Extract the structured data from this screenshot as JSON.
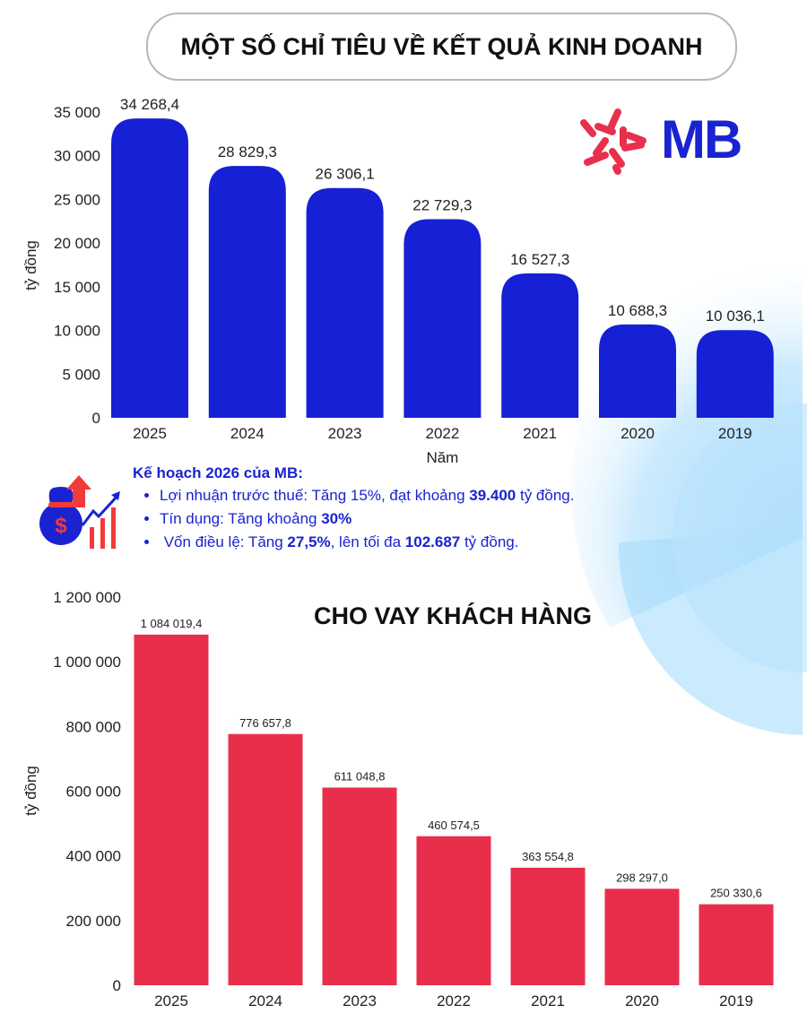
{
  "header": {
    "title": "MỘT SỐ CHỈ TIÊU VỀ KẾT QUẢ KINH DOANH"
  },
  "logo": {
    "text": "MB",
    "star_color": "#e8304c",
    "text_color": "#1a23d0"
  },
  "plan": {
    "title": "Kế hoạch 2026 của MB:",
    "items": [
      {
        "pre": "Lợi nhuận trước thuế: Tăng 15%, đạt khoảng ",
        "b1": "39.400",
        "mid": " tỷ đồng.",
        "b2": "",
        "post": ""
      },
      {
        "pre": "Tín dụng: Tăng khoảng ",
        "b1": "30%",
        "mid": "",
        "b2": "",
        "post": ""
      },
      {
        "pre": " Vốn điều lệ: Tăng ",
        "b1": "27,5%",
        "mid": ", lên tối đa ",
        "b2": "102.687",
        "post": " tỷ đồng."
      }
    ],
    "icon": "money-bag-growth-icon"
  },
  "chart_data": [
    {
      "type": "bar",
      "title": "",
      "xlabel": "Năm",
      "ylabel": "tỷ đồng",
      "categories": [
        "2025",
        "2024",
        "2023",
        "2022",
        "2021",
        "2020",
        "2019"
      ],
      "values": [
        34268.4,
        28829.3,
        26306.1,
        22729.3,
        16527.3,
        10688.3,
        10036.1
      ],
      "data_labels": [
        "34 268,4",
        "28 829,3",
        "26 306,1",
        "22 729,3",
        "16 527,3",
        "10 688,3",
        "10 036,1"
      ],
      "ylim": [
        0,
        35000
      ],
      "yticks": [
        0,
        5000,
        10000,
        15000,
        20000,
        25000,
        30000,
        35000
      ],
      "ytick_labels": [
        "0",
        "5 000",
        "10 000",
        "15 000",
        "20 000",
        "25 000",
        "30 000",
        "35 000"
      ],
      "color": "#1620d4",
      "grid": false
    },
    {
      "type": "bar",
      "title": "CHO VAY KHÁCH HÀNG",
      "xlabel": "",
      "ylabel": "tỷ đồng",
      "categories": [
        "2025",
        "2024",
        "2023",
        "2022",
        "2021",
        "2020",
        "2019"
      ],
      "values": [
        1084019.4,
        776657.8,
        611048.8,
        460574.5,
        363554.8,
        298297.0,
        250330.6
      ],
      "data_labels": [
        "1 084 019,4",
        "776 657,8",
        "611 048,8",
        "460 574,5",
        "363 554,8",
        "298 297,0",
        "250 330,6"
      ],
      "ylim": [
        0,
        1200000
      ],
      "yticks": [
        0,
        200000,
        400000,
        600000,
        800000,
        1000000,
        1200000
      ],
      "ytick_labels": [
        "0",
        "200 000",
        "400 000",
        "600 000",
        "800 000",
        "1 000 000",
        "1 200 000"
      ],
      "color": "#e92e4b",
      "grid": false
    }
  ]
}
